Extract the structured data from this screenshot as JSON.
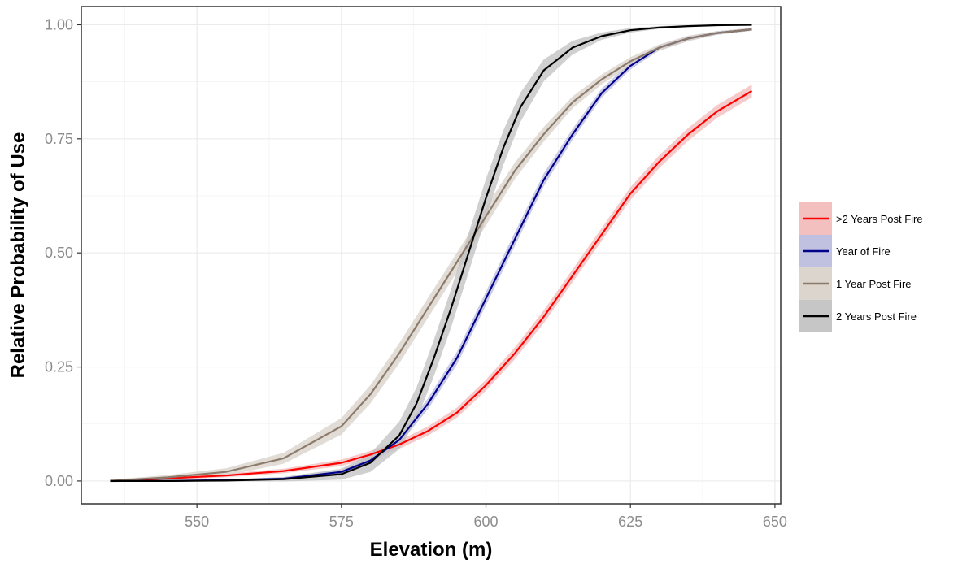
{
  "chart_data": {
    "type": "line",
    "title": "",
    "xlabel": "Elevation (m)",
    "ylabel": "Relative Probability of Use",
    "xlim": [
      530,
      651
    ],
    "ylim": [
      -0.05,
      1.04
    ],
    "x_ticks": [
      550,
      575,
      600,
      625,
      650
    ],
    "x_tick_labels": [
      "550",
      "575",
      "600",
      "625",
      "650"
    ],
    "y_ticks": [
      0,
      0.25,
      0.5,
      0.75,
      1
    ],
    "y_tick_labels": [
      "0.00",
      "0.25",
      "0.50",
      "0.75",
      "1.00"
    ],
    "grid": true,
    "legend_position": "right",
    "series": [
      {
        "name": ">2 Years Post Fire",
        "color": "#ff0000",
        "band_color": "#f2b8b8",
        "x": [
          535,
          545,
          555,
          565,
          575,
          580,
          585,
          590,
          595,
          600,
          605,
          610,
          615,
          620,
          625,
          630,
          635,
          640,
          646
        ],
        "y": [
          0.0,
          0.006,
          0.012,
          0.022,
          0.04,
          0.058,
          0.08,
          0.11,
          0.15,
          0.21,
          0.28,
          0.36,
          0.45,
          0.54,
          0.63,
          0.7,
          0.76,
          0.81,
          0.855
        ],
        "band": [
          0.002,
          0.003,
          0.004,
          0.005,
          0.007,
          0.008,
          0.009,
          0.01,
          0.011,
          0.012,
          0.013,
          0.014,
          0.014,
          0.014,
          0.014,
          0.014,
          0.014,
          0.014,
          0.014
        ]
      },
      {
        "name": "Year of Fire",
        "color": "#00008b",
        "band_color": "#b9b9dd",
        "x": [
          535,
          545,
          555,
          565,
          575,
          580,
          585,
          590,
          595,
          600,
          605,
          610,
          615,
          620,
          625,
          630,
          635,
          640,
          646
        ],
        "y": [
          0.0,
          0.0,
          0.002,
          0.005,
          0.02,
          0.045,
          0.09,
          0.17,
          0.27,
          0.4,
          0.53,
          0.66,
          0.76,
          0.85,
          0.91,
          0.95,
          0.97,
          0.982,
          0.99
        ],
        "band": [
          0.001,
          0.001,
          0.002,
          0.003,
          0.005,
          0.007,
          0.01,
          0.012,
          0.014,
          0.015,
          0.015,
          0.014,
          0.012,
          0.01,
          0.008,
          0.006,
          0.005,
          0.004,
          0.003
        ]
      },
      {
        "name": "1 Year Post Fire",
        "color": "#8c7b6b",
        "band_color": "#d8d0c8",
        "x": [
          535,
          545,
          555,
          565,
          575,
          580,
          585,
          590,
          595,
          600,
          605,
          610,
          615,
          620,
          625,
          630,
          635,
          640,
          646
        ],
        "y": [
          0.0,
          0.008,
          0.02,
          0.05,
          0.12,
          0.19,
          0.28,
          0.38,
          0.48,
          0.58,
          0.68,
          0.76,
          0.83,
          0.88,
          0.92,
          0.95,
          0.97,
          0.982,
          0.99
        ],
        "band": [
          0.003,
          0.005,
          0.008,
          0.012,
          0.018,
          0.02,
          0.022,
          0.022,
          0.021,
          0.02,
          0.018,
          0.016,
          0.013,
          0.011,
          0.009,
          0.007,
          0.006,
          0.004,
          0.003
        ]
      },
      {
        "name": "2 Years Post Fire",
        "color": "#000000",
        "band_color": "#c0c0c0",
        "x": [
          535,
          545,
          555,
          565,
          575,
          580,
          585,
          588,
          591,
          594,
          597,
          600,
          603,
          606,
          610,
          615,
          620,
          625,
          630,
          635,
          640,
          646
        ],
        "y": [
          0.0,
          0.0,
          0.001,
          0.004,
          0.015,
          0.04,
          0.1,
          0.17,
          0.27,
          0.38,
          0.5,
          0.62,
          0.73,
          0.82,
          0.9,
          0.95,
          0.975,
          0.988,
          0.994,
          0.997,
          0.999,
          1.0
        ],
        "band": [
          0.001,
          0.001,
          0.002,
          0.005,
          0.012,
          0.02,
          0.03,
          0.035,
          0.04,
          0.042,
          0.043,
          0.042,
          0.038,
          0.032,
          0.024,
          0.015,
          0.008,
          0.005,
          0.003,
          0.002,
          0.001,
          0.001
        ]
      }
    ]
  }
}
